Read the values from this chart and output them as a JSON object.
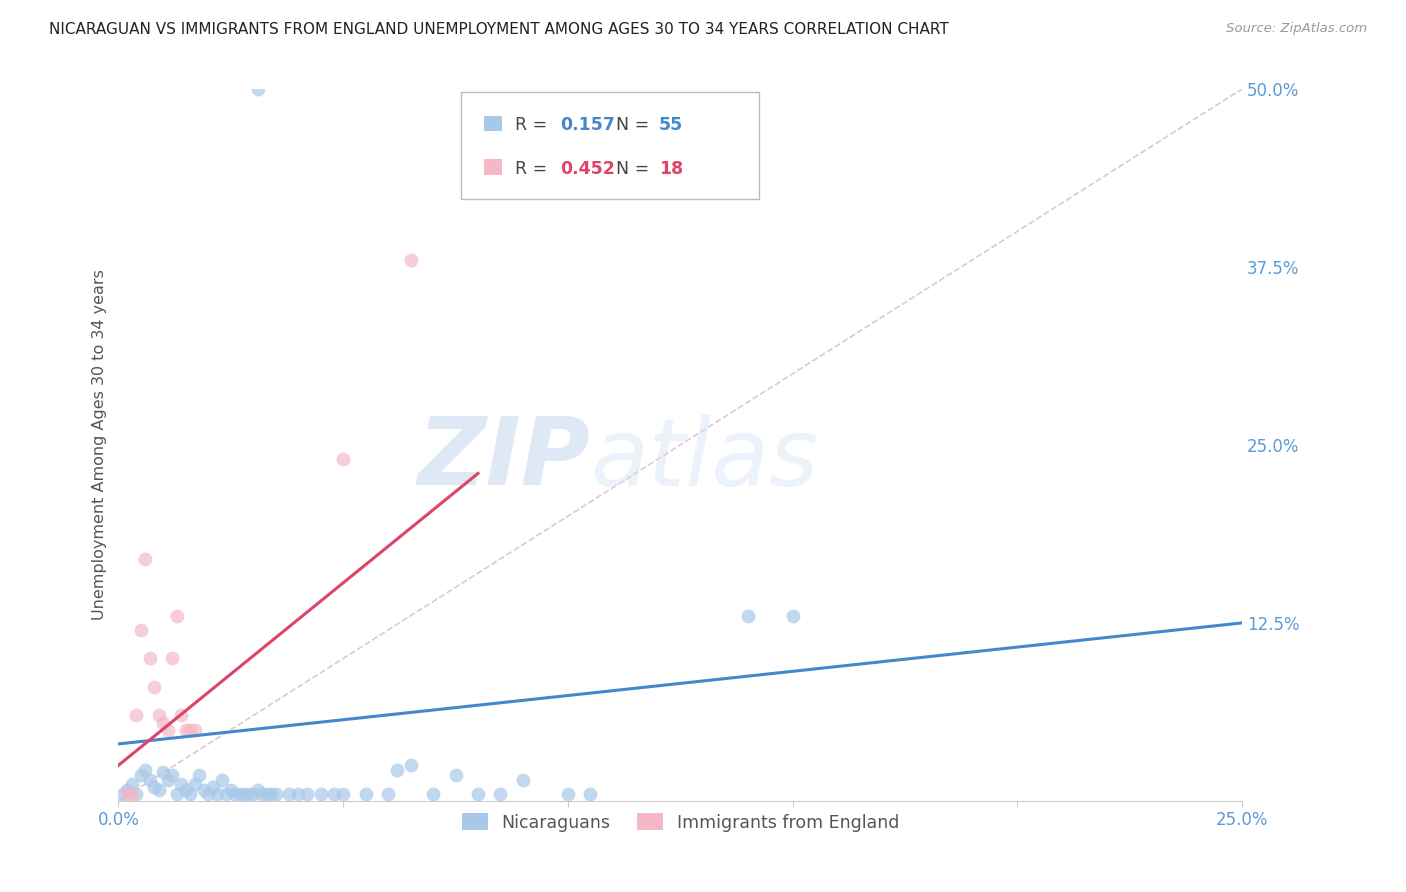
{
  "title": "NICARAGUAN VS IMMIGRANTS FROM ENGLAND UNEMPLOYMENT AMONG AGES 30 TO 34 YEARS CORRELATION CHART",
  "source": "Source: ZipAtlas.com",
  "ylabel": "Unemployment Among Ages 30 to 34 years",
  "xlim": [
    0.0,
    0.25
  ],
  "ylim": [
    0.0,
    0.5
  ],
  "xticks": [
    0.0,
    0.05,
    0.1,
    0.15,
    0.2,
    0.25
  ],
  "xticklabels": [
    "0.0%",
    "",
    "",
    "",
    "",
    "25.0%"
  ],
  "yticks_right": [
    0.0,
    0.125,
    0.25,
    0.375,
    0.5
  ],
  "yticklabels_right": [
    "",
    "12.5%",
    "25.0%",
    "37.5%",
    "50.0%"
  ],
  "blue_color": "#a8c8e8",
  "pink_color": "#f4b8c8",
  "blue_line_color": "#4488cc",
  "pink_line_color": "#dd4466",
  "diag_color": "#ddb8c0",
  "legend_R1": "0.157",
  "legend_N1": "55",
  "legend_R2": "0.452",
  "legend_N2": "18",
  "label1": "Nicaraguans",
  "label2": "Immigrants from England",
  "title_color": "#222222",
  "axis_label_color": "#555555",
  "tick_color": "#5B9BD5",
  "grid_color": "#dddddd",
  "watermark_zip": "ZIP",
  "watermark_atlas": "atlas",
  "blue_dots": [
    [
      0.001,
      0.005
    ],
    [
      0.002,
      0.008
    ],
    [
      0.003,
      0.012
    ],
    [
      0.004,
      0.005
    ],
    [
      0.005,
      0.018
    ],
    [
      0.006,
      0.022
    ],
    [
      0.007,
      0.015
    ],
    [
      0.008,
      0.01
    ],
    [
      0.009,
      0.008
    ],
    [
      0.01,
      0.02
    ],
    [
      0.011,
      0.015
    ],
    [
      0.012,
      0.018
    ],
    [
      0.013,
      0.005
    ],
    [
      0.014,
      0.012
    ],
    [
      0.015,
      0.008
    ],
    [
      0.016,
      0.005
    ],
    [
      0.017,
      0.012
    ],
    [
      0.018,
      0.018
    ],
    [
      0.019,
      0.008
    ],
    [
      0.02,
      0.005
    ],
    [
      0.021,
      0.01
    ],
    [
      0.022,
      0.005
    ],
    [
      0.023,
      0.015
    ],
    [
      0.024,
      0.005
    ],
    [
      0.025,
      0.008
    ],
    [
      0.026,
      0.005
    ],
    [
      0.027,
      0.005
    ],
    [
      0.028,
      0.005
    ],
    [
      0.029,
      0.005
    ],
    [
      0.03,
      0.005
    ],
    [
      0.031,
      0.008
    ],
    [
      0.032,
      0.005
    ],
    [
      0.033,
      0.005
    ],
    [
      0.034,
      0.005
    ],
    [
      0.035,
      0.005
    ],
    [
      0.038,
      0.005
    ],
    [
      0.04,
      0.005
    ],
    [
      0.042,
      0.005
    ],
    [
      0.045,
      0.005
    ],
    [
      0.048,
      0.005
    ],
    [
      0.05,
      0.005
    ],
    [
      0.055,
      0.005
    ],
    [
      0.06,
      0.005
    ],
    [
      0.062,
      0.022
    ],
    [
      0.065,
      0.025
    ],
    [
      0.07,
      0.005
    ],
    [
      0.075,
      0.018
    ],
    [
      0.08,
      0.005
    ],
    [
      0.085,
      0.005
    ],
    [
      0.09,
      0.015
    ],
    [
      0.1,
      0.005
    ],
    [
      0.105,
      0.005
    ],
    [
      0.14,
      0.13
    ],
    [
      0.15,
      0.13
    ],
    [
      0.031,
      0.5
    ]
  ],
  "pink_dots": [
    [
      0.002,
      0.005
    ],
    [
      0.003,
      0.005
    ],
    [
      0.004,
      0.06
    ],
    [
      0.005,
      0.12
    ],
    [
      0.006,
      0.17
    ],
    [
      0.007,
      0.1
    ],
    [
      0.008,
      0.08
    ],
    [
      0.009,
      0.06
    ],
    [
      0.01,
      0.055
    ],
    [
      0.011,
      0.05
    ],
    [
      0.012,
      0.1
    ],
    [
      0.013,
      0.13
    ],
    [
      0.014,
      0.06
    ],
    [
      0.015,
      0.05
    ],
    [
      0.016,
      0.05
    ],
    [
      0.017,
      0.05
    ],
    [
      0.05,
      0.24
    ],
    [
      0.065,
      0.38
    ]
  ],
  "blue_reg": [
    0.0,
    0.04,
    0.25,
    0.125
  ],
  "pink_reg": [
    0.0,
    0.025,
    0.08,
    0.23
  ],
  "diag_line": [
    0.0,
    0.0,
    0.25,
    0.5
  ]
}
